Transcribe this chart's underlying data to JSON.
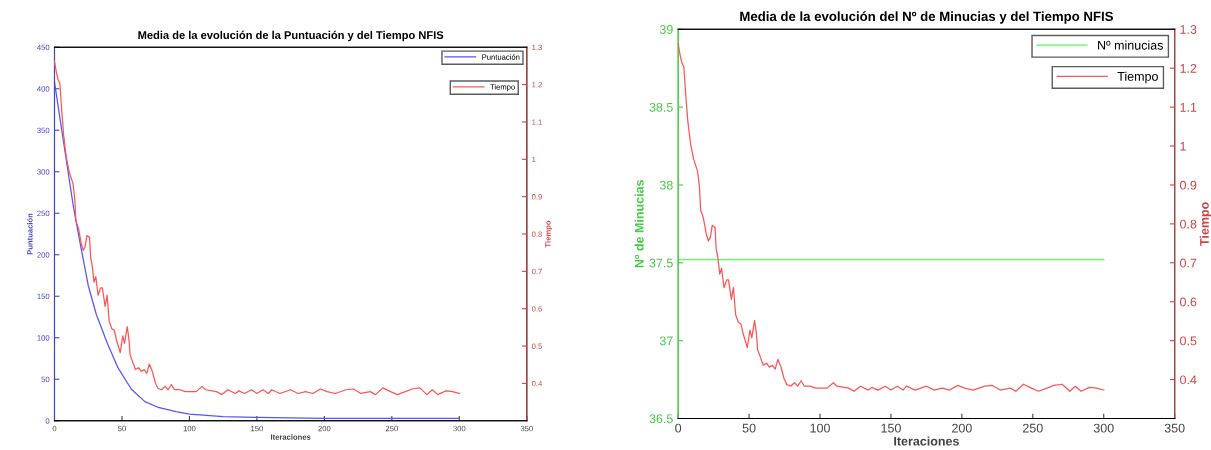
{
  "chart_data": [
    {
      "type": "line",
      "title": "Media de la evolución de la Puntuación y del Tiempo NFIS",
      "xlabel": "Iteraciones",
      "ylabel": "Puntuación",
      "y2label": "Tiempo",
      "xlim": [
        0,
        350
      ],
      "xticks": [
        0,
        50,
        100,
        150,
        200,
        250,
        300,
        350
      ],
      "ylim": [
        0,
        450
      ],
      "yticks": [
        0,
        50,
        100,
        150,
        200,
        250,
        300,
        350,
        400,
        450
      ],
      "y2lim": [
        0.3,
        1.3
      ],
      "y2ticks": [
        0.4,
        0.5,
        0.6,
        0.7,
        0.8,
        0.9,
        {
          "value": 1.0,
          "label": "1"
        },
        1.1,
        1.2,
        1.3
      ],
      "legend": "top right",
      "grid": false,
      "series": [
        {
          "name": "Puntuación",
          "color": "#5555ff",
          "x": [
            0,
            4,
            8,
            14,
            19,
            25,
            31,
            39,
            47,
            57,
            67,
            77,
            90,
            100,
            125,
            150,
            200,
            250,
            300
          ],
          "values": [
            408,
            365,
            322,
            258,
            214,
            163,
            128,
            94,
            64,
            38,
            23,
            16,
            11,
            8,
            5,
            4,
            3,
            3,
            3
          ]
        },
        {
          "name": "Tiempo",
          "color": "#ff5555",
          "axis": "y2",
          "x": [
            0,
            1.4,
            2.7,
            4,
            5.5,
            6.8,
            8.8,
            11,
            13.7,
            15,
            15.9,
            17.8,
            19.7,
            21.3,
            22.7,
            24,
            26,
            26.8,
            27.9,
            29.3,
            30.6,
            32.3,
            34.2,
            35.5,
            37.5,
            39,
            40.5,
            42.4,
            44.3,
            45.9,
            48.7,
            50.6,
            51.9,
            53.9,
            55.2,
            56,
            58,
            60,
            62.3,
            64.3,
            66.4,
            68.4,
            70.3,
            72.5,
            74.7,
            76.6,
            79.3,
            82,
            84.2,
            86.7,
            88.9,
            93,
            97,
            102.5,
            105,
            109.4,
            112,
            120,
            124,
            128.5,
            134,
            136.7,
            140.8,
            146,
            150,
            154.5,
            158.6,
            161,
            167,
            175,
            180.5,
            186,
            191.4,
            197,
            202,
            208,
            216,
            221.5,
            227,
            234,
            238,
            243.4,
            249,
            254,
            260,
            265,
            270.7,
            276,
            280,
            284,
            290,
            295,
            300
          ],
          "values": [
            1.263,
            1.233,
            1.213,
            1.203,
            1.124,
            1.064,
            1.004,
            0.965,
            0.935,
            0.895,
            0.835,
            0.815,
            0.776,
            0.756,
            0.766,
            0.796,
            0.791,
            0.736,
            0.716,
            0.671,
            0.686,
            0.636,
            0.656,
            0.656,
            0.606,
            0.636,
            0.567,
            0.547,
            0.542,
            0.517,
            0.482,
            0.527,
            0.507,
            0.552,
            0.517,
            0.477,
            0.457,
            0.437,
            0.442,
            0.432,
            0.437,
            0.427,
            0.452,
            0.432,
            0.402,
            0.387,
            0.383,
            0.392,
            0.383,
            0.397,
            0.383,
            0.383,
            0.378,
            0.378,
            0.378,
            0.392,
            0.383,
            0.378,
            0.37,
            0.383,
            0.373,
            0.38,
            0.373,
            0.383,
            0.373,
            0.383,
            0.373,
            0.383,
            0.373,
            0.383,
            0.373,
            0.378,
            0.373,
            0.385,
            0.378,
            0.373,
            0.383,
            0.385,
            0.373,
            0.378,
            0.37,
            0.388,
            0.378,
            0.37,
            0.378,
            0.385,
            0.388,
            0.37,
            0.383,
            0.37,
            0.38,
            0.378,
            0.373
          ]
        }
      ]
    },
    {
      "type": "line",
      "title": "Media de la evolución del Nº de Minucias y del Tiempo NFIS",
      "xlabel": "Iteraciones",
      "ylabel": "Nº de Minucias",
      "y2label": "Tiempo",
      "xlim": [
        0,
        350
      ],
      "xticks": [
        0,
        50,
        100,
        150,
        200,
        250,
        300,
        350
      ],
      "ylim": [
        36.5,
        39
      ],
      "yticks": [
        36.5,
        37,
        37.5,
        38,
        38.5,
        39
      ],
      "y2lim": [
        0.3,
        1.3
      ],
      "y2ticks": [
        0.4,
        0.5,
        0.6,
        0.7,
        0.8,
        0.9,
        {
          "value": 1.0,
          "label": "1"
        },
        1.1,
        1.2,
        1.3
      ],
      "legend": "top right",
      "grid": false,
      "series": [
        {
          "name": "Nº minucias",
          "color": "#55ff55",
          "x": [
            0,
            300
          ],
          "values": [
            37.52,
            37.52
          ]
        },
        {
          "name": "Tiempo",
          "color": "#ff5555",
          "axis": "y2",
          "x": [
            0,
            1.4,
            2.7,
            4,
            5.5,
            6.8,
            8.8,
            11,
            13.7,
            15,
            15.9,
            17.8,
            19.7,
            21.3,
            22.7,
            24,
            26,
            26.8,
            27.9,
            29.3,
            30.6,
            32.3,
            34.2,
            35.5,
            37.5,
            39,
            40.5,
            42.4,
            44.3,
            45.9,
            48.7,
            50.6,
            51.9,
            53.9,
            55.2,
            56,
            58,
            60,
            62.3,
            64.3,
            66.4,
            68.4,
            70.3,
            72.5,
            74.7,
            76.6,
            79.3,
            82,
            84.2,
            86.7,
            88.9,
            93,
            97,
            102.5,
            105,
            109.4,
            112,
            120,
            124,
            128.5,
            134,
            136.7,
            140.8,
            146,
            150,
            154.5,
            158.6,
            161,
            167,
            175,
            180.5,
            186,
            191.4,
            197,
            202,
            208,
            216,
            221.5,
            227,
            234,
            238,
            243.4,
            249,
            254,
            260,
            265,
            270.7,
            276,
            280,
            284,
            290,
            295,
            300
          ],
          "values": [
            1.263,
            1.233,
            1.213,
            1.203,
            1.124,
            1.064,
            1.004,
            0.965,
            0.935,
            0.895,
            0.835,
            0.815,
            0.776,
            0.756,
            0.766,
            0.796,
            0.791,
            0.736,
            0.716,
            0.671,
            0.686,
            0.636,
            0.656,
            0.656,
            0.606,
            0.636,
            0.567,
            0.547,
            0.542,
            0.517,
            0.482,
            0.527,
            0.507,
            0.552,
            0.517,
            0.477,
            0.457,
            0.437,
            0.442,
            0.432,
            0.437,
            0.427,
            0.452,
            0.432,
            0.402,
            0.387,
            0.383,
            0.392,
            0.383,
            0.397,
            0.383,
            0.383,
            0.378,
            0.378,
            0.378,
            0.392,
            0.383,
            0.378,
            0.37,
            0.383,
            0.373,
            0.38,
            0.373,
            0.383,
            0.373,
            0.383,
            0.373,
            0.383,
            0.373,
            0.383,
            0.373,
            0.378,
            0.373,
            0.385,
            0.378,
            0.373,
            0.383,
            0.385,
            0.373,
            0.378,
            0.37,
            0.388,
            0.378,
            0.37,
            0.378,
            0.385,
            0.388,
            0.37,
            0.383,
            0.37,
            0.38,
            0.378,
            0.373
          ]
        }
      ]
    }
  ]
}
